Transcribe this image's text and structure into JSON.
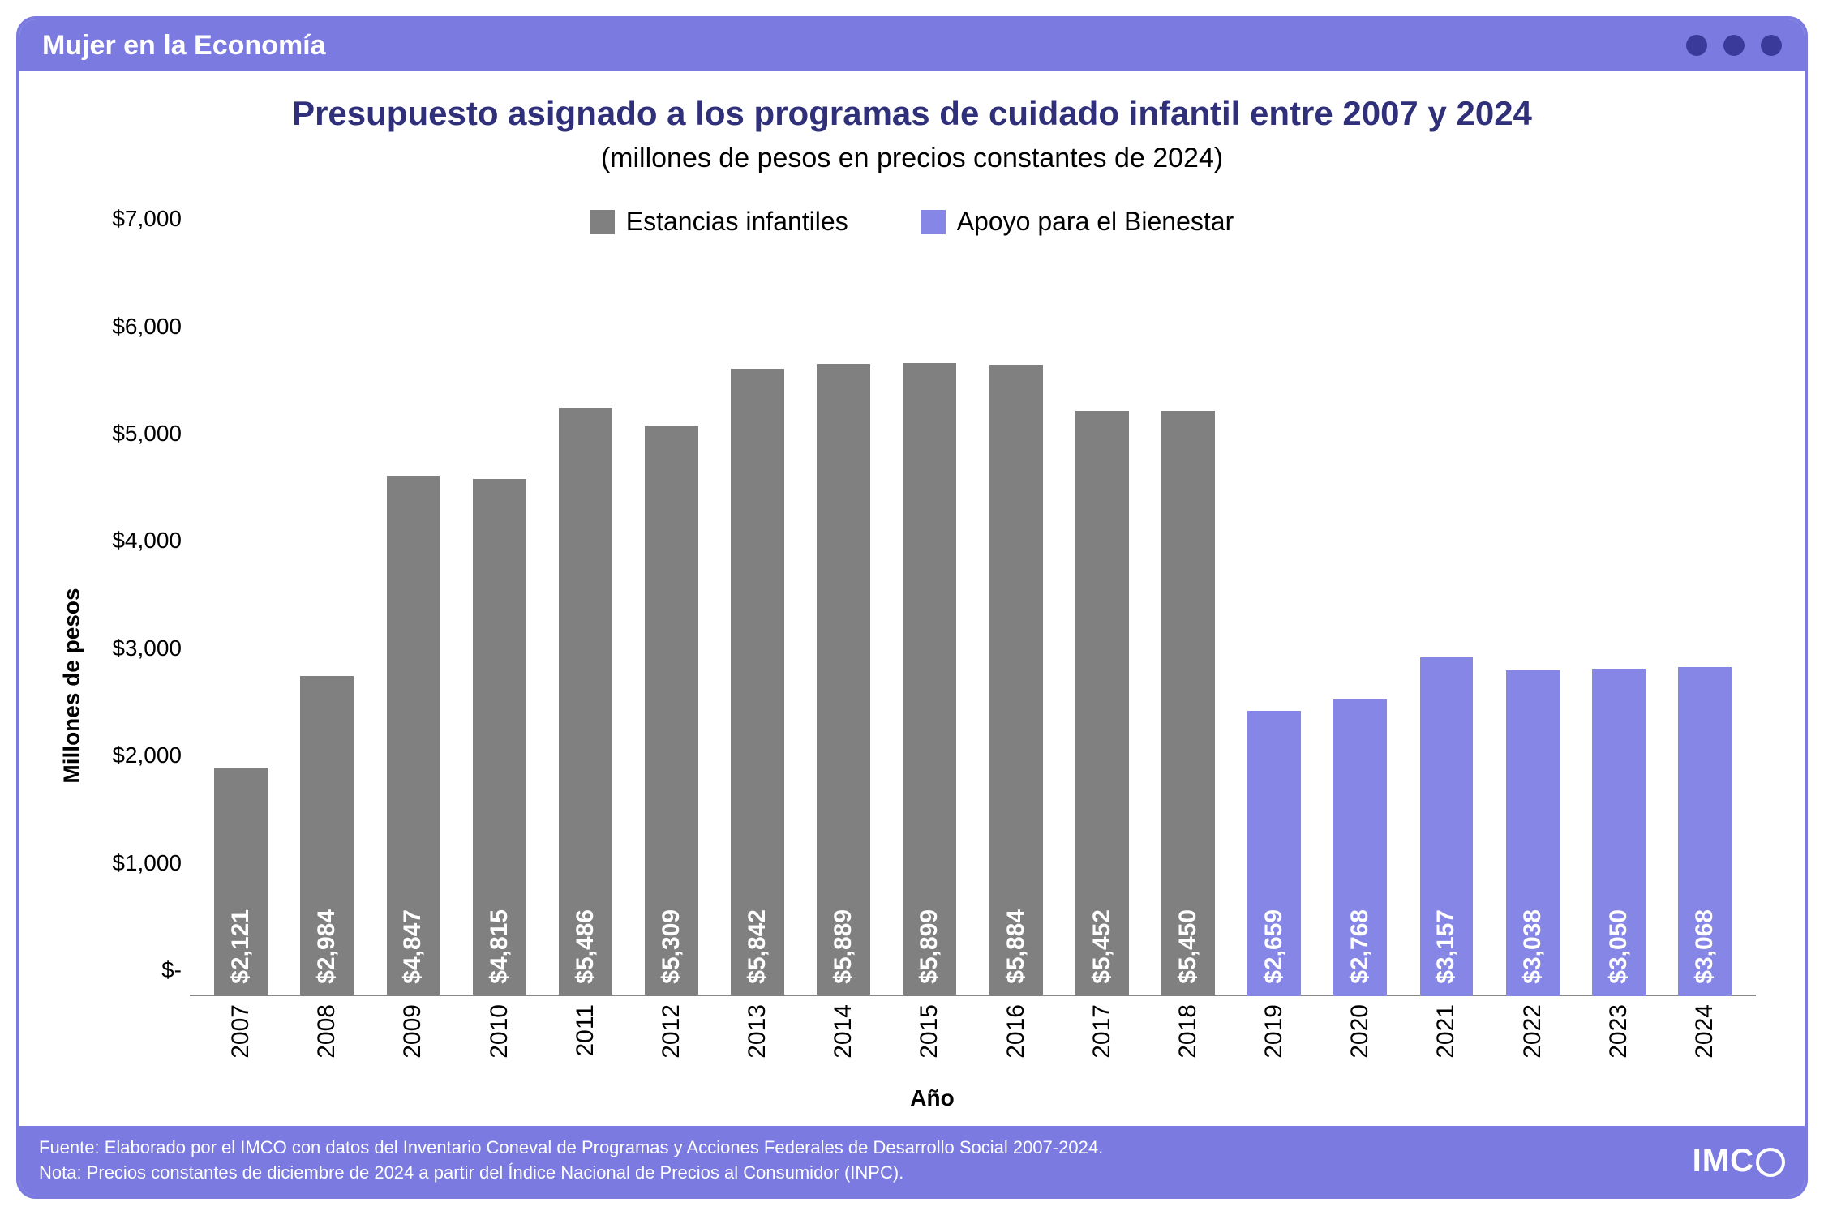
{
  "header": {
    "title": "Mujer en la Economía"
  },
  "chart": {
    "type": "bar",
    "title": "Presupuesto asignado a los programas de cuidado infantil entre 2007 y 2024",
    "subtitle": "(millones de pesos en precios constantes de 2024)",
    "title_color": "#2f2f7a",
    "title_fontsize": 42,
    "subtitle_fontsize": 34,
    "series": [
      {
        "name": "Estancias infantiles",
        "color": "#808080"
      },
      {
        "name": "Apoyo para el Bienestar",
        "color": "#8686e6"
      }
    ],
    "categories": [
      "2007",
      "2008",
      "2009",
      "2010",
      "2011",
      "2012",
      "2013",
      "2014",
      "2015",
      "2016",
      "2017",
      "2018",
      "2019",
      "2020",
      "2021",
      "2022",
      "2023",
      "2024"
    ],
    "values": [
      2121,
      2984,
      4847,
      4815,
      5486,
      5309,
      5842,
      5889,
      5899,
      5884,
      5452,
      5450,
      2659,
      2768,
      3157,
      3038,
      3050,
      3068
    ],
    "value_labels": [
      "$2,121",
      "$2,984",
      "$4,847",
      "$4,815",
      "$5,486",
      "$5,309",
      "$5,842",
      "$5,889",
      "$5,899",
      "$5,884",
      "$5,452",
      "$5,450",
      "$2,659",
      "$2,768",
      "$3,157",
      "$3,038",
      "$3,050",
      "$3,068"
    ],
    "series_index": [
      0,
      0,
      0,
      0,
      0,
      0,
      0,
      0,
      0,
      0,
      0,
      0,
      1,
      1,
      1,
      1,
      1,
      1
    ],
    "ylabel": "Millones de pesos",
    "xlabel": "Año",
    "ylim": [
      0,
      7000
    ],
    "ytick_step": 1000,
    "ytick_labels": [
      "$-",
      "$1,000",
      "$2,000",
      "$3,000",
      "$4,000",
      "$5,000",
      "$6,000",
      "$7,000"
    ],
    "label_fontsize": 28,
    "tick_fontsize": 28,
    "bar_label_fontsize": 30,
    "bar_label_color": "#ffffff",
    "bar_width": 0.62,
    "background_color": "#ffffff",
    "accent_color": "#7a7ae0"
  },
  "footer": {
    "source": "Fuente: Elaborado por el IMCO con datos del Inventario Coneval de Programas y Acciones Federales de Desarrollo Social 2007-2024.",
    "note": "Nota: Precios constantes de diciembre de 2024 a partir del Índice Nacional de Precios al Consumidor (INPC).",
    "logo_text": "IMC"
  }
}
